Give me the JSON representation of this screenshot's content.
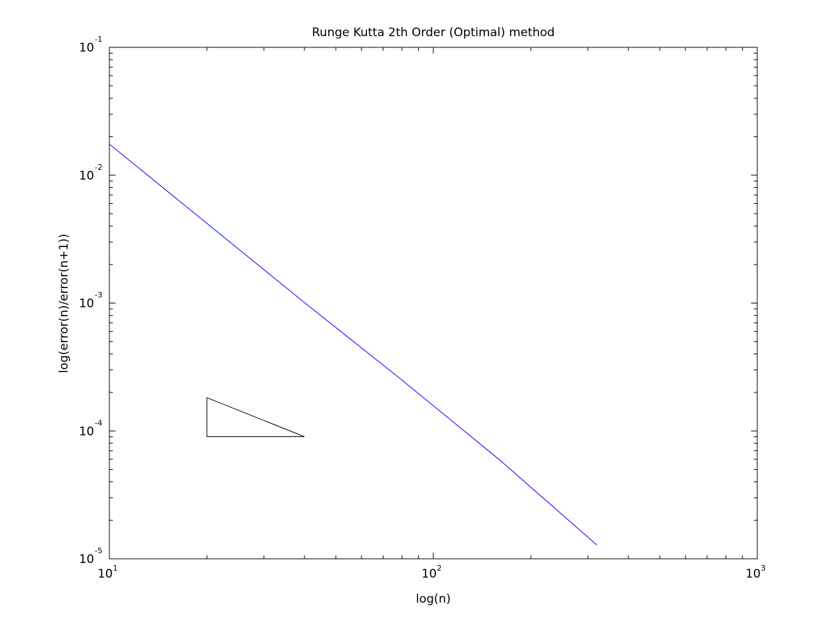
{
  "chart_data": {
    "type": "line",
    "title": "Runge Kutta 2th Order (Optimal) method",
    "xlabel": "log(n)",
    "ylabel": "log(error(n)/error(n+1))",
    "xscale": "log",
    "yscale": "log",
    "xlim": [
      10,
      1000
    ],
    "ylim": [
      1e-05,
      0.1
    ],
    "grid": false,
    "legend": "none",
    "x_ticks": [
      {
        "value": 10,
        "base": "10",
        "exp": "1"
      },
      {
        "value": 100,
        "base": "10",
        "exp": "2"
      },
      {
        "value": 1000,
        "base": "10",
        "exp": "3"
      }
    ],
    "y_ticks": [
      {
        "value": 1e-05,
        "base": "10",
        "exp": "-5"
      },
      {
        "value": 0.0001,
        "base": "10",
        "exp": "-4"
      },
      {
        "value": 0.001,
        "base": "10",
        "exp": "-3"
      },
      {
        "value": 0.01,
        "base": "10",
        "exp": "-2"
      },
      {
        "value": 0.1,
        "base": "10",
        "exp": "-1"
      }
    ],
    "series": [
      {
        "color": "#0000ff",
        "x": [
          10,
          20,
          40,
          80,
          160,
          320
        ],
        "y": [
          0.0175,
          0.0042,
          0.00101,
          0.00025,
          5.95e-05,
          1.28e-05
        ]
      }
    ],
    "slope_triangle": {
      "color": "#000000",
      "points": [
        [
          20,
          9.02e-05
        ],
        [
          20,
          0.000182
        ],
        [
          40,
          9.02e-05
        ]
      ]
    }
  }
}
